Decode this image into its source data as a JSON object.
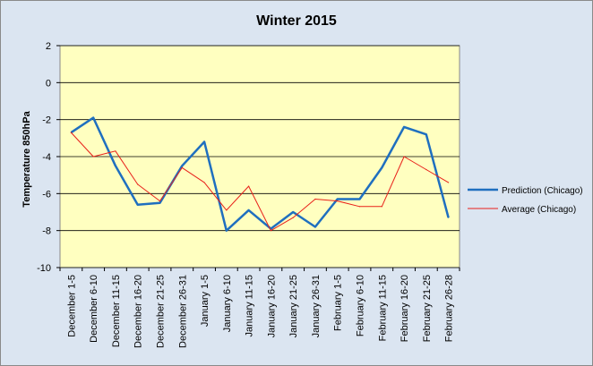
{
  "chart_data": {
    "type": "line",
    "title": "Winter 2015",
    "xlabel": "",
    "ylabel": "Temperature 850hPa",
    "ylim": [
      -10,
      2
    ],
    "yticks": [
      2,
      0,
      -2,
      -4,
      -6,
      -8,
      -10
    ],
    "grid": true,
    "legend_position": "right",
    "categories": [
      "December 1-5",
      "December 6-10",
      "December 11-15",
      "December 16-20",
      "December 21-25",
      "December 26-31",
      "January 1-5",
      "January 6-10",
      "January 11-15",
      "January 16-20",
      "January 21-25",
      "January 26-31",
      "February 1-5",
      "February 6-10",
      "February 11-15",
      "February 16-20",
      "February 21-25",
      "February 26-28"
    ],
    "series": [
      {
        "name": "Prediction (Chicago)",
        "color": "#1f6fbf",
        "values": [
          -2.7,
          -1.9,
          -4.5,
          -6.6,
          -6.5,
          -4.5,
          -3.2,
          -8.0,
          -6.9,
          -7.9,
          -7.0,
          -7.8,
          -6.3,
          -6.3,
          -4.6,
          -2.4,
          -2.8,
          -7.3
        ]
      },
      {
        "name": "Average (Chicago)",
        "color": "#e8201a",
        "values": [
          -2.7,
          -4.0,
          -3.7,
          -5.5,
          -6.4,
          -4.6,
          -5.4,
          -6.9,
          -5.6,
          -8.0,
          -7.3,
          -6.3,
          -6.4,
          -6.7,
          -6.7,
          -4.0,
          -4.7,
          -5.4
        ]
      }
    ]
  }
}
